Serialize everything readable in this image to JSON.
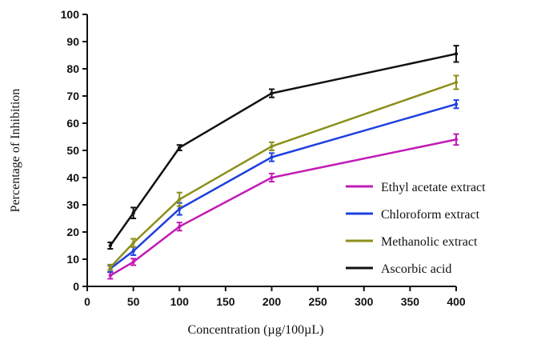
{
  "chart_data": {
    "type": "line",
    "title": "",
    "xlabel": "Concentration (µg/100µL)",
    "ylabel": "Percentage of Inhibition",
    "xlim": [
      0,
      400
    ],
    "ylim": [
      0,
      100
    ],
    "x_ticks": [
      0,
      50,
      100,
      150,
      200,
      250,
      300,
      350,
      400
    ],
    "y_ticks": [
      0,
      10,
      20,
      30,
      40,
      50,
      60,
      70,
      80,
      90,
      100
    ],
    "grid": false,
    "legend_position": "right",
    "x": [
      25,
      50,
      100,
      200,
      400
    ],
    "series": [
      {
        "name": "Ethyl acetate extract",
        "color": "#c21bb5",
        "values": [
          4,
          9,
          22,
          40,
          54
        ],
        "errors": [
          1.2,
          1.2,
          1.5,
          1.5,
          2
        ]
      },
      {
        "name": "Chloroform extract",
        "color": "#1f3fe0",
        "values": [
          6.5,
          13,
          28.5,
          47.5,
          67
        ],
        "errors": [
          1.2,
          1.5,
          2.2,
          1.5,
          1.5
        ]
      },
      {
        "name": "Methanolic extract",
        "color": "#8c8f1a",
        "values": [
          7,
          16,
          32,
          51.5,
          75
        ],
        "errors": [
          1,
          1.5,
          2.5,
          1.5,
          2.5
        ]
      },
      {
        "name": "Ascorbic acid",
        "color": "#111111",
        "values": [
          15,
          27,
          51,
          71,
          85.5
        ],
        "errors": [
          1.2,
          2,
          1,
          1.5,
          3
        ]
      }
    ]
  }
}
